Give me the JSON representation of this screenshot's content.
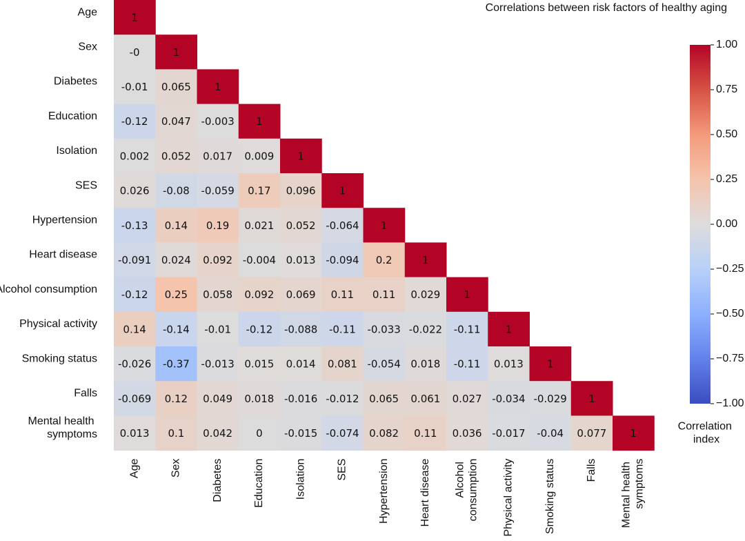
{
  "chart_data": {
    "type": "heatmap",
    "title": "Correlations between risk factors of healthy aging",
    "categories": [
      "Age",
      "Sex",
      "Diabetes",
      "Education",
      "Isolation",
      "SES",
      "Hypertension",
      "Heart disease",
      "Alcohol consumption",
      "Physical activity",
      "Smoking status",
      "Falls",
      "Mental health symptoms"
    ],
    "values": [
      [
        1
      ],
      [
        0,
        1
      ],
      [
        -0.01,
        0.065,
        1
      ],
      [
        -0.12,
        0.047,
        -0.003,
        1
      ],
      [
        0.002,
        0.052,
        0.017,
        0.009,
        1
      ],
      [
        0.026,
        -0.08,
        -0.059,
        0.17,
        0.096,
        1
      ],
      [
        -0.13,
        0.14,
        0.19,
        0.021,
        0.052,
        -0.064,
        1
      ],
      [
        -0.091,
        0.024,
        0.092,
        -0.004,
        0.013,
        -0.094,
        0.2,
        1
      ],
      [
        -0.12,
        0.25,
        0.058,
        0.092,
        0.069,
        0.11,
        0.11,
        0.029,
        1
      ],
      [
        0.14,
        -0.14,
        -0.01,
        -0.12,
        -0.088,
        -0.11,
        -0.033,
        -0.022,
        -0.11,
        1
      ],
      [
        -0.026,
        -0.37,
        -0.013,
        0.015,
        0.014,
        0.081,
        -0.054,
        0.018,
        -0.11,
        0.013,
        1
      ],
      [
        -0.069,
        0.12,
        0.049,
        0.018,
        -0.016,
        -0.012,
        0.065,
        0.061,
        0.027,
        -0.034,
        -0.029,
        1
      ],
      [
        0.013,
        0.1,
        0.042,
        0,
        -0.015,
        -0.074,
        0.082,
        0.11,
        0.036,
        -0.017,
        -0.04,
        0.077,
        1
      ]
    ],
    "value_labels": {
      "1": {
        "0": "-0"
      }
    },
    "colorbar_label": "Correlation index",
    "clim": [
      -1,
      1
    ],
    "cticks": [
      {
        "value": 1,
        "label": "1.00"
      },
      {
        "value": 0.75,
        "label": "0.75"
      },
      {
        "value": 0.5,
        "label": "0.50"
      },
      {
        "value": 0.25,
        "label": "0.25"
      },
      {
        "value": 0,
        "label": "0.00"
      },
      {
        "value": -0.25,
        "label": "−0.25"
      },
      {
        "value": -0.5,
        "label": "−0.50"
      },
      {
        "value": -0.75,
        "label": "−0.75"
      },
      {
        "value": -1,
        "label": "−1.00"
      }
    ],
    "colormap": [
      "#3b4cc0",
      "#6282ea",
      "#8db0fe",
      "#b8d0f9",
      "#dddcdc",
      "#f5c4ac",
      "#f49a7b",
      "#d65244",
      "#b40426"
    ]
  }
}
